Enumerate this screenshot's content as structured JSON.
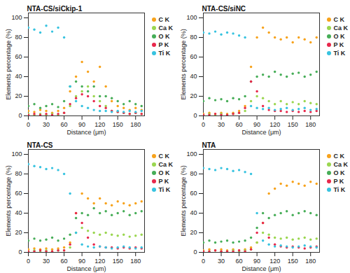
{
  "chart_data": [
    {
      "type": "scatter",
      "title": "NTA-CS/siCkip-1",
      "x_label": "Distance (μm)",
      "y_label": "Elements percentage (%)",
      "x": [
        0,
        10,
        20,
        30,
        40,
        50,
        60,
        70,
        80,
        90,
        100,
        110,
        120,
        130,
        140,
        150,
        160,
        170,
        180,
        190
      ],
      "xlim": [
        0,
        195
      ],
      "xticks": [
        0,
        30,
        60,
        90,
        120,
        150,
        180
      ],
      "ylim": [
        0,
        105
      ],
      "yticks": [
        0,
        20,
        40,
        60,
        80,
        100
      ],
      "legend": "right",
      "marker": "circle",
      "grid": false,
      "series": [
        {
          "name": "C K",
          "color": "#f7a21b",
          "values": [
            5,
            4,
            6,
            5,
            3,
            5,
            8,
            25,
            40,
            55,
            45,
            35,
            50,
            30,
            15,
            10,
            8,
            6,
            8,
            6
          ]
        },
        {
          "name": "Ca K",
          "color": "#9ad64f",
          "values": [
            2,
            1,
            2,
            1,
            2,
            1,
            3,
            10,
            20,
            25,
            30,
            20,
            15,
            10,
            5,
            4,
            3,
            2,
            3,
            2
          ]
        },
        {
          "name": "O K",
          "color": "#46ad57",
          "values": [
            10,
            12,
            8,
            10,
            12,
            9,
            15,
            30,
            35,
            30,
            25,
            30,
            20,
            20,
            18,
            15,
            12,
            15,
            12,
            10
          ]
        },
        {
          "name": "P K",
          "color": "#e8274b",
          "values": [
            1,
            2,
            1,
            2,
            1,
            2,
            3,
            12,
            18,
            22,
            20,
            15,
            10,
            8,
            5,
            4,
            3,
            2,
            3,
            2
          ]
        },
        {
          "name": "Ti K",
          "color": "#37c3e0",
          "values": [
            90,
            88,
            85,
            92,
            86,
            90,
            80,
            30,
            15,
            10,
            8,
            6,
            5,
            5,
            4,
            5,
            4,
            5,
            4,
            5
          ]
        }
      ]
    },
    {
      "type": "scatter",
      "title": "NTA-CS/siNC",
      "x_label": "Distance (μm)",
      "y_label": "Elements percentage (%)",
      "x": [
        0,
        10,
        20,
        30,
        40,
        50,
        60,
        70,
        80,
        90,
        100,
        110,
        120,
        130,
        140,
        150,
        160,
        170,
        180,
        190
      ],
      "xlim": [
        0,
        195
      ],
      "xticks": [
        0,
        30,
        60,
        90,
        120,
        150,
        180
      ],
      "ylim": [
        0,
        105
      ],
      "yticks": [
        0,
        20,
        40,
        60,
        80,
        100
      ],
      "legend": "right",
      "marker": "circle",
      "grid": false,
      "series": [
        {
          "name": "C K",
          "color": "#f7a21b",
          "values": [
            2,
            3,
            2,
            3,
            2,
            3,
            5,
            10,
            50,
            80,
            90,
            85,
            80,
            78,
            80,
            75,
            80,
            78,
            75,
            80
          ]
        },
        {
          "name": "Ca K",
          "color": "#9ad64f",
          "values": [
            1,
            2,
            1,
            2,
            1,
            2,
            3,
            5,
            15,
            20,
            18,
            15,
            12,
            15,
            12,
            14,
            12,
            15,
            13,
            12
          ]
        },
        {
          "name": "O K",
          "color": "#46ad57",
          "values": [
            15,
            18,
            16,
            17,
            15,
            18,
            17,
            20,
            35,
            40,
            42,
            40,
            45,
            42,
            40,
            43,
            44,
            40,
            42,
            45
          ]
        },
        {
          "name": "P K",
          "color": "#e8274b",
          "values": [
            1,
            1,
            2,
            1,
            1,
            2,
            3,
            8,
            35,
            25,
            10,
            6,
            5,
            5,
            4,
            5,
            4,
            5,
            4,
            5
          ]
        },
        {
          "name": "Ti K",
          "color": "#37c3e0",
          "values": [
            85,
            84,
            86,
            83,
            85,
            84,
            82,
            80,
            10,
            8,
            7,
            8,
            6,
            7,
            8,
            6,
            7,
            8,
            6,
            7
          ]
        }
      ]
    },
    {
      "type": "scatter",
      "title": "NTA-CS",
      "x_label": "Distance (μm)",
      "y_label": "Elements percentage (%)",
      "x": [
        0,
        10,
        20,
        30,
        40,
        50,
        60,
        70,
        80,
        90,
        100,
        110,
        120,
        130,
        140,
        150,
        160,
        170,
        180,
        190
      ],
      "xlim": [
        0,
        195
      ],
      "xticks": [
        0,
        30,
        60,
        90,
        120,
        150,
        180
      ],
      "ylim": [
        0,
        105
      ],
      "yticks": [
        0,
        20,
        40,
        60,
        80,
        100
      ],
      "legend": "right",
      "marker": "circle",
      "grid": false,
      "series": [
        {
          "name": "C K",
          "color": "#f7a21b",
          "values": [
            3,
            4,
            3,
            4,
            3,
            4,
            5,
            10,
            40,
            60,
            55,
            50,
            55,
            50,
            48,
            52,
            50,
            48,
            50,
            52
          ]
        },
        {
          "name": "Ca K",
          "color": "#9ad64f",
          "values": [
            1,
            2,
            1,
            2,
            1,
            2,
            2,
            5,
            20,
            25,
            22,
            20,
            18,
            20,
            18,
            17,
            18,
            16,
            17,
            18
          ]
        },
        {
          "name": "O K",
          "color": "#46ad57",
          "values": [
            12,
            14,
            12,
            13,
            15,
            12,
            14,
            18,
            35,
            40,
            38,
            45,
            40,
            42,
            38,
            40,
            42,
            38,
            40,
            42
          ]
        },
        {
          "name": "P K",
          "color": "#e8274b",
          "values": [
            1,
            1,
            2,
            1,
            1,
            2,
            2,
            8,
            40,
            30,
            15,
            8,
            6,
            5,
            5,
            4,
            5,
            4,
            5,
            4
          ]
        },
        {
          "name": "Ti K",
          "color": "#37c3e0",
          "values": [
            90,
            88,
            87,
            85,
            86,
            84,
            80,
            60,
            20,
            8,
            6,
            5,
            6,
            5,
            4,
            5,
            6,
            5,
            4,
            5
          ]
        }
      ]
    },
    {
      "type": "scatter",
      "title": "NTA",
      "x_label": "Distance (μm)",
      "y_label": "Elements percentage (%)",
      "x": [
        0,
        10,
        20,
        30,
        40,
        50,
        60,
        70,
        80,
        90,
        100,
        110,
        120,
        130,
        140,
        150,
        160,
        170,
        180,
        190
      ],
      "xlim": [
        0,
        195
      ],
      "xticks": [
        0,
        30,
        60,
        90,
        120,
        150,
        180
      ],
      "ylim": [
        0,
        105
      ],
      "yticks": [
        0,
        20,
        40,
        60,
        80,
        100
      ],
      "legend": "right",
      "marker": "circle",
      "grid": false,
      "series": [
        {
          "name": "C K",
          "color": "#f7a21b",
          "values": [
            2,
            3,
            2,
            3,
            2,
            3,
            2,
            3,
            5,
            10,
            30,
            60,
            65,
            70,
            68,
            72,
            70,
            68,
            72,
            70
          ]
        },
        {
          "name": "Ca K",
          "color": "#9ad64f",
          "values": [
            1,
            1,
            2,
            1,
            1,
            2,
            1,
            2,
            3,
            10,
            20,
            18,
            15,
            14,
            15,
            13,
            14,
            15,
            13,
            14
          ]
        },
        {
          "name": "O K",
          "color": "#46ad57",
          "values": [
            10,
            12,
            10,
            11,
            12,
            10,
            11,
            12,
            15,
            25,
            40,
            35,
            38,
            40,
            42,
            38,
            40,
            42,
            40,
            38
          ]
        },
        {
          "name": "P K",
          "color": "#e8274b",
          "values": [
            1,
            1,
            2,
            1,
            1,
            1,
            2,
            1,
            3,
            20,
            30,
            15,
            8,
            6,
            5,
            6,
            5,
            4,
            5,
            6
          ]
        },
        {
          "name": "Ti K",
          "color": "#37c3e0",
          "values": [
            86,
            85,
            84,
            86,
            85,
            83,
            84,
            82,
            80,
            40,
            12,
            8,
            6,
            7,
            6,
            5,
            6,
            7,
            6,
            5
          ]
        }
      ]
    }
  ]
}
